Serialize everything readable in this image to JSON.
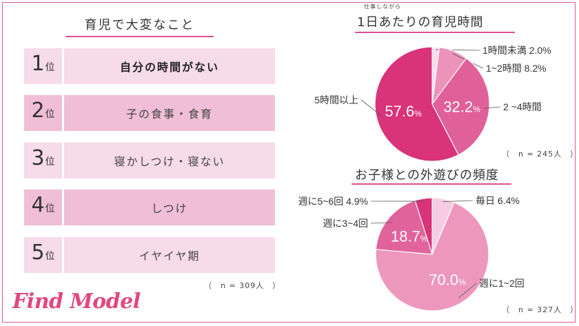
{
  "ranking": {
    "title": "育児で大変なこと",
    "suffix": "位",
    "items": [
      {
        "rank": "1",
        "label": "自分の時間がない"
      },
      {
        "rank": "2",
        "label": "子の食事・食育"
      },
      {
        "rank": "3",
        "label": "寝かしつけ・寝ない"
      },
      {
        "rank": "4",
        "label": "しつけ"
      },
      {
        "rank": "5",
        "label": "イヤイヤ期"
      }
    ],
    "note": "（　n = 309人　）"
  },
  "chart1_header": {
    "ruby": "仕事しながら",
    "title": "1日あたりの育児時間",
    "note": "（　n = 245人　）"
  },
  "chart2_header": {
    "title": "お子様との外遊びの頻度",
    "note": "（　n = 327人　）"
  },
  "logo": "Find Model",
  "chart_data": [
    {
      "type": "pie",
      "title": "1日あたりの育児時間",
      "unit": "%",
      "slices": [
        {
          "label": "1時間未満",
          "value": 2.0,
          "color": "#f8dde9"
        },
        {
          "label": "1~2時間",
          "value": 8.2,
          "color": "#ec93ba"
        },
        {
          "label": "2 ~4時間",
          "value": 32.2,
          "color": "#e0609a"
        },
        {
          "label": "5時間以上",
          "value": 57.6,
          "color": "#d93379"
        }
      ]
    },
    {
      "type": "pie",
      "title": "お子様との外遊びの頻度",
      "unit": "%",
      "slices": [
        {
          "label": "毎日",
          "value": 6.4,
          "color": "#f6cde0"
        },
        {
          "label": "週に1~2回",
          "value": 70.0,
          "color": "#ed97bd"
        },
        {
          "label": "週に3~4回",
          "value": 18.7,
          "color": "#e1639c"
        },
        {
          "label": "週に5~6回",
          "value": 4.9,
          "color": "#d93379"
        }
      ]
    }
  ]
}
